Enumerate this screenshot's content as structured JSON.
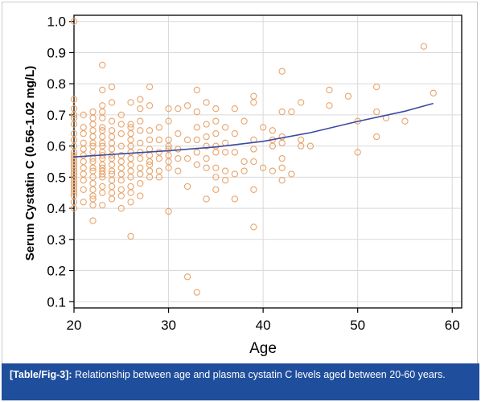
{
  "caption": {
    "label": "[Table/Fig-3]:",
    "text": " Relationship between age and plasma cystatin C levels aged between 20-60 years."
  },
  "colors": {
    "points": "#e8a46b",
    "trend": "#3b4aa0",
    "grid": "#d9d9d9",
    "caption_bg": "#1f4e9c"
  },
  "chart_data": {
    "type": "scatter",
    "title": "",
    "xlabel": "Age",
    "ylabel": "Serum Cystatin C (0.56-1.02 mg/L)",
    "xlim": [
      20,
      61
    ],
    "ylim": [
      0.08,
      1.02
    ],
    "xticks": [
      20,
      30,
      40,
      50,
      60
    ],
    "yticks": [
      0.1,
      0.2,
      0.3,
      0.4,
      0.5,
      0.6,
      0.7,
      0.8,
      0.9,
      1.0
    ],
    "ytick_labels": [
      "0.1",
      "0.2",
      "0.3",
      "0.4",
      "0.5",
      "0.6",
      "0.7",
      "0.8",
      "0.9",
      "1.0"
    ],
    "grid": true,
    "series": [
      {
        "kind": "points",
        "x": [
          20,
          20,
          20,
          20,
          20,
          20,
          20,
          20,
          20,
          20,
          20,
          20,
          20,
          20,
          20,
          20,
          20,
          20,
          20,
          20,
          20,
          20,
          20,
          20,
          20,
          20,
          21,
          21,
          21,
          21,
          21,
          21,
          21,
          21,
          21,
          21,
          21,
          21,
          22,
          22,
          22,
          22,
          22,
          22,
          22,
          22,
          22,
          22,
          22,
          22,
          22,
          22,
          22,
          22,
          22,
          22,
          22,
          23,
          23,
          23,
          23,
          23,
          23,
          23,
          23,
          23,
          23,
          23,
          23,
          23,
          23,
          23,
          23,
          23,
          23,
          23,
          23,
          23,
          24,
          24,
          24,
          24,
          24,
          24,
          24,
          24,
          24,
          24,
          24,
          24,
          24,
          24,
          24,
          24,
          25,
          25,
          25,
          25,
          25,
          25,
          25,
          25,
          25,
          25,
          25,
          25,
          26,
          26,
          26,
          26,
          26,
          26,
          26,
          26,
          26,
          26,
          26,
          26,
          26,
          26,
          26,
          27,
          27,
          27,
          27,
          27,
          27,
          27,
          27,
          27,
          27,
          27,
          28,
          28,
          28,
          28,
          28,
          28,
          28,
          28,
          28,
          28,
          29,
          29,
          29,
          29,
          29,
          29,
          30,
          30,
          30,
          30,
          30,
          30,
          30,
          30,
          30,
          31,
          31,
          31,
          31,
          31,
          32,
          32,
          32,
          32,
          32,
          33,
          33,
          33,
          33,
          33,
          33,
          33,
          34,
          34,
          34,
          34,
          34,
          34,
          34,
          35,
          35,
          35,
          35,
          35,
          35,
          35,
          35,
          36,
          36,
          36,
          36,
          36,
          37,
          37,
          37,
          37,
          37,
          38,
          38,
          38,
          39,
          39,
          39,
          39,
          39,
          39,
          39,
          40,
          40,
          41,
          41,
          41,
          41,
          42,
          42,
          42,
          42,
          42,
          42,
          42,
          43,
          43,
          44,
          44,
          44,
          45,
          47,
          47,
          49,
          50,
          50,
          52,
          52,
          52,
          53,
          55,
          57,
          58
        ],
        "y": [
          1.0,
          0.75,
          0.72,
          0.7,
          0.69,
          0.67,
          0.64,
          0.62,
          0.6,
          0.58,
          0.57,
          0.56,
          0.55,
          0.54,
          0.53,
          0.52,
          0.51,
          0.5,
          0.49,
          0.48,
          0.47,
          0.46,
          0.45,
          0.44,
          0.42,
          0.4,
          0.7,
          0.66,
          0.64,
          0.61,
          0.59,
          0.57,
          0.55,
          0.53,
          0.51,
          0.49,
          0.46,
          0.42,
          0.71,
          0.69,
          0.67,
          0.65,
          0.63,
          0.61,
          0.6,
          0.58,
          0.56,
          0.55,
          0.53,
          0.52,
          0.5,
          0.48,
          0.46,
          0.44,
          0.43,
          0.41,
          0.36,
          0.86,
          0.78,
          0.73,
          0.71,
          0.69,
          0.66,
          0.65,
          0.63,
          0.61,
          0.6,
          0.58,
          0.57,
          0.56,
          0.54,
          0.53,
          0.52,
          0.51,
          0.5,
          0.47,
          0.45,
          0.41,
          0.79,
          0.74,
          0.68,
          0.65,
          0.63,
          0.61,
          0.59,
          0.57,
          0.56,
          0.54,
          0.52,
          0.51,
          0.49,
          0.47,
          0.45,
          0.43,
          0.7,
          0.67,
          0.64,
          0.6,
          0.57,
          0.55,
          0.53,
          0.51,
          0.49,
          0.46,
          0.44,
          0.4,
          0.74,
          0.67,
          0.66,
          0.64,
          0.62,
          0.6,
          0.58,
          0.56,
          0.54,
          0.52,
          0.5,
          0.47,
          0.45,
          0.42,
          0.31,
          0.75,
          0.72,
          0.68,
          0.65,
          0.61,
          0.58,
          0.56,
          0.53,
          0.51,
          0.48,
          0.44,
          0.79,
          0.73,
          0.65,
          0.62,
          0.59,
          0.57,
          0.55,
          0.54,
          0.52,
          0.5,
          0.66,
          0.62,
          0.58,
          0.56,
          0.52,
          0.5,
          0.72,
          0.68,
          0.62,
          0.6,
          0.59,
          0.57,
          0.55,
          0.53,
          0.39,
          0.72,
          0.64,
          0.59,
          0.56,
          0.52,
          0.73,
          0.62,
          0.56,
          0.47,
          0.18,
          0.78,
          0.71,
          0.66,
          0.62,
          0.58,
          0.54,
          0.13,
          0.74,
          0.67,
          0.63,
          0.6,
          0.56,
          0.53,
          0.43,
          0.72,
          0.68,
          0.64,
          0.6,
          0.58,
          0.53,
          0.5,
          0.46,
          0.66,
          0.61,
          0.58,
          0.52,
          0.49,
          0.72,
          0.64,
          0.58,
          0.51,
          0.43,
          0.68,
          0.55,
          0.52,
          0.76,
          0.74,
          0.62,
          0.59,
          0.55,
          0.46,
          0.34,
          0.66,
          0.53,
          0.65,
          0.62,
          0.6,
          0.52,
          0.84,
          0.71,
          0.63,
          0.61,
          0.56,
          0.53,
          0.49,
          0.71,
          0.51,
          0.74,
          0.62,
          0.6,
          0.6,
          0.78,
          0.73,
          0.76,
          0.68,
          0.58,
          0.79,
          0.71,
          0.63,
          0.69,
          0.68,
          0.92,
          0.77
        ]
      },
      {
        "kind": "trend",
        "x": [
          20,
          25,
          30,
          35,
          40,
          45,
          50,
          55,
          58
        ],
        "y": [
          0.565,
          0.575,
          0.585,
          0.597,
          0.615,
          0.643,
          0.679,
          0.712,
          0.737
        ]
      }
    ]
  }
}
